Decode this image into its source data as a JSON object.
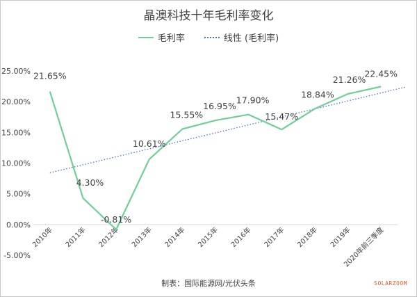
{
  "title": "晶澳科技十年毛利率变化",
  "source": "制表：国际能源网/光伏头条",
  "brand": "SOLARZOOM",
  "legend": {
    "series": "毛利率",
    "trend": "线性 (毛利率)"
  },
  "colors": {
    "series": "#6fcf97",
    "trend": "#4472c4",
    "text": "#404040",
    "axis": "#d9d9d9"
  },
  "chart_data": {
    "type": "line",
    "title": "晶澳科技十年毛利率变化",
    "categories": [
      "2010年",
      "2011年",
      "2012年",
      "2013年",
      "2014年",
      "2015年",
      "2016年",
      "2017年",
      "2018年",
      "2019年",
      "2020年前三季度"
    ],
    "series": [
      {
        "name": "毛利率",
        "values": [
          21.65,
          4.3,
          -0.81,
          10.61,
          15.55,
          16.95,
          17.9,
          15.47,
          18.84,
          21.26,
          22.45
        ],
        "data_labels": [
          "21.65%",
          "4.30%",
          "-0.81%",
          "10.61%",
          "15.55%",
          "16.95%",
          "17.90%",
          "15.47%",
          "18.84%",
          "21.26%",
          "22.45%"
        ]
      }
    ],
    "trendline": {
      "name": "线性 (毛利率)",
      "type": "linear"
    },
    "yticks": [
      "25.00%",
      "20.00%",
      "15.00%",
      "10.00%",
      "5.00%",
      "0.00%",
      "-5.00%"
    ],
    "ytick_values": [
      25,
      20,
      15,
      10,
      5,
      0,
      -5
    ],
    "ylim": [
      -5,
      25
    ],
    "grid": false,
    "legend_position": "top"
  }
}
